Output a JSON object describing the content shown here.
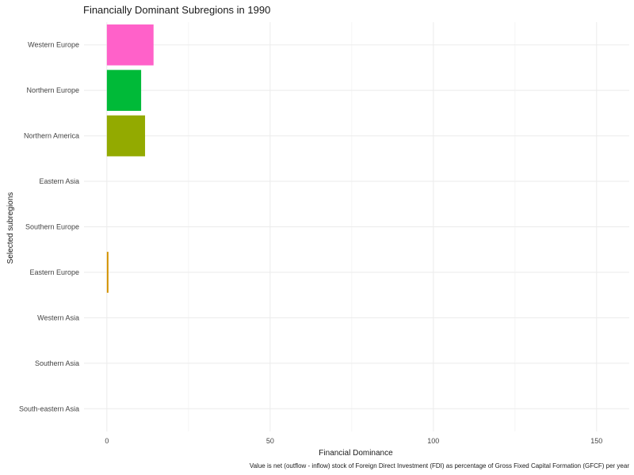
{
  "chart_data": {
    "type": "bar",
    "orientation": "horizontal",
    "title": "Financially Dominant Subregions in 1990",
    "xlabel": "Financial Dominance",
    "ylabel": "Selected subregions",
    "caption": "Value is net (outflow - inflow) stock of Foreign Direct Investment (FDI) as percentage of Gross Fixed Capital Formation (GFCF) per year",
    "xlim": [
      -7,
      160
    ],
    "x_ticks": [
      0,
      50,
      100,
      150
    ],
    "grid": true,
    "legend": "none",
    "categories": [
      "Western Europe",
      "Northern Europe",
      "Northern America",
      "Eastern Asia",
      "Southern Europe",
      "Eastern Europe",
      "Western Asia",
      "Southern Asia",
      "South-eastern Asia"
    ],
    "values": [
      14.3,
      10.5,
      11.7,
      0,
      0,
      0.4,
      0,
      0,
      0
    ],
    "colors": [
      "#FF61C9",
      "#00BA38",
      "#93AA00",
      "#00C19F",
      "#00B9E3",
      "#D39200",
      "#F8766D",
      "#619CFF",
      "#DB72FB"
    ]
  }
}
